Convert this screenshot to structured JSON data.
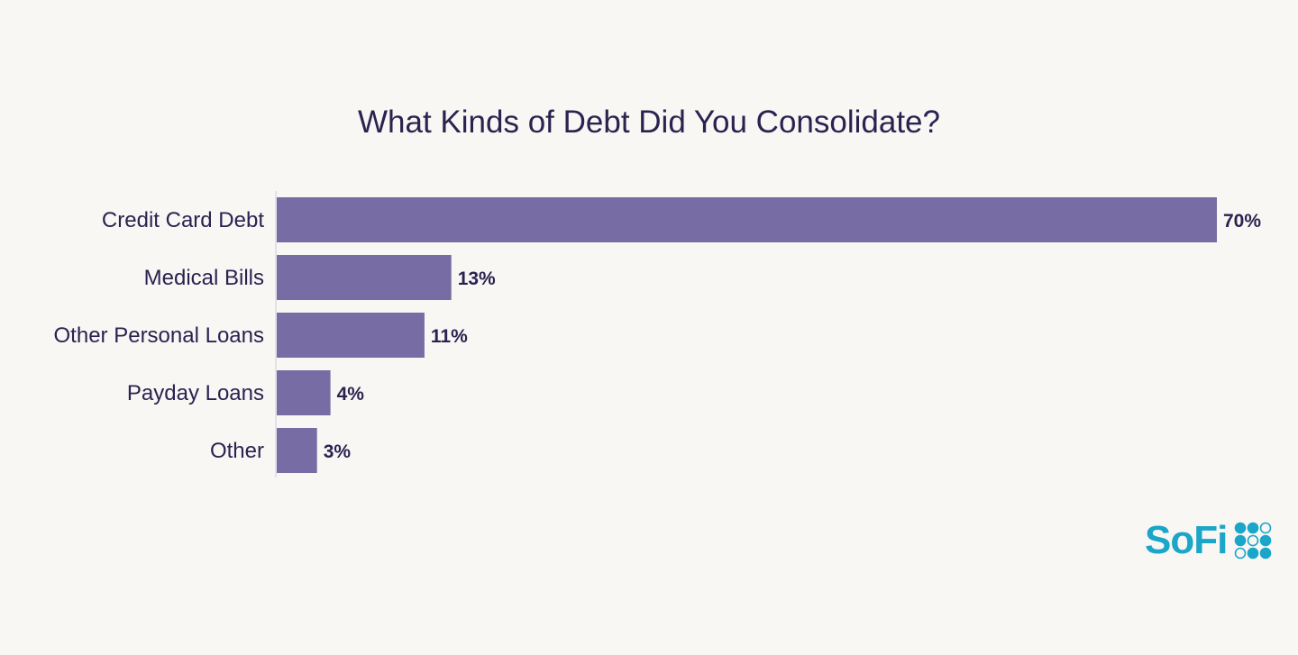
{
  "chart_data": {
    "type": "bar",
    "orientation": "horizontal",
    "title": "What Kinds of Debt Did You Consolidate?",
    "categories": [
      "Credit Card Debt",
      "Medical Bills",
      "Other Personal Loans",
      "Payday Loans",
      "Other"
    ],
    "values": [
      70,
      13,
      11,
      4,
      3
    ],
    "data_labels": [
      "70%",
      "13%",
      "11%",
      "4%",
      "3%"
    ],
    "unit": "%",
    "xlim": [
      0,
      70
    ],
    "grid": false,
    "bar_color": "#776ca3",
    "label_color": "#2a2350"
  },
  "brand": {
    "logo_text": "SoFi",
    "color": "#1ba6c9"
  }
}
